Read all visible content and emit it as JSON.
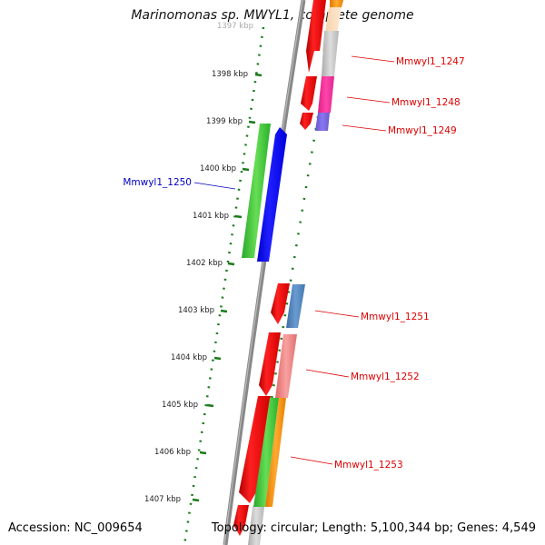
{
  "header": {
    "title": "Marinomonas sp. MWYL1, complete genome"
  },
  "footer": {
    "accession": "Accession: NC_009654",
    "summary": "Topology: circular; Length: 5,100,344 bp; Genes: 4,549"
  },
  "colors": {
    "backbone": "#888888",
    "ticks": "#1a7a1a",
    "label_red": "#dd0000",
    "label_blue": "#0000bb"
  },
  "ticks": [
    {
      "label": "1397 kbp"
    },
    {
      "label": "1398 kbp"
    },
    {
      "label": "1399 kbp"
    },
    {
      "label": "1400 kbp"
    },
    {
      "label": "1401 kbp"
    },
    {
      "label": "1402 kbp"
    },
    {
      "label": "1403 kbp"
    },
    {
      "label": "1404 kbp"
    },
    {
      "label": "1405 kbp"
    },
    {
      "label": "1406 kbp"
    },
    {
      "label": "1407 kbp"
    }
  ],
  "gene_labels": [
    {
      "text": "Mmwyl1_1247",
      "color": "#dd0000"
    },
    {
      "text": "Mmwyl1_1248",
      "color": "#dd0000"
    },
    {
      "text": "Mmwyl1_1249",
      "color": "#dd0000"
    },
    {
      "text": "Mmwyl1_1250",
      "color": "#0000bb"
    },
    {
      "text": "Mmwyl1_1251",
      "color": "#dd0000"
    },
    {
      "text": "Mmwyl1_1252",
      "color": "#dd0000"
    },
    {
      "text": "Mmwyl1_1253",
      "color": "#dd0000"
    }
  ]
}
